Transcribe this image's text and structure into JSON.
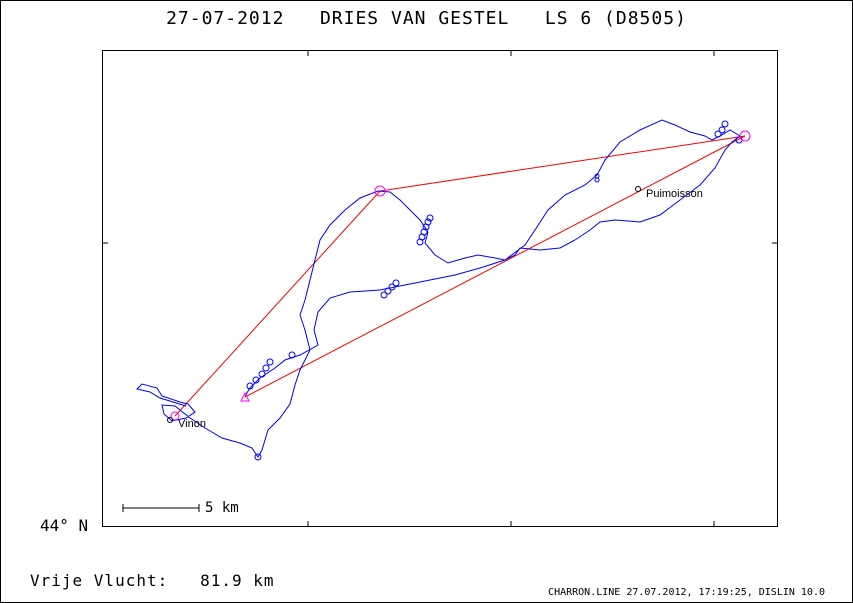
{
  "header": {
    "title": "27-07-2012   DRIES VAN GESTEL   LS 6 (D8505)"
  },
  "axis": {
    "latitude_label": "44° N"
  },
  "scale_bar": {
    "label": "5 km"
  },
  "towns": [
    {
      "name": "Vinon"
    },
    {
      "name": "Puimoisson"
    }
  ],
  "footer": {
    "distance_text": "Vrije Vlucht:   81.9 km",
    "info_text": "CHARRON.LINE 27.07.2012, 17:19:25, DISLIN 10.0"
  },
  "colors": {
    "track": "#0000ff",
    "task": "#ff0000",
    "turnpoint": "#ff00ff"
  }
}
